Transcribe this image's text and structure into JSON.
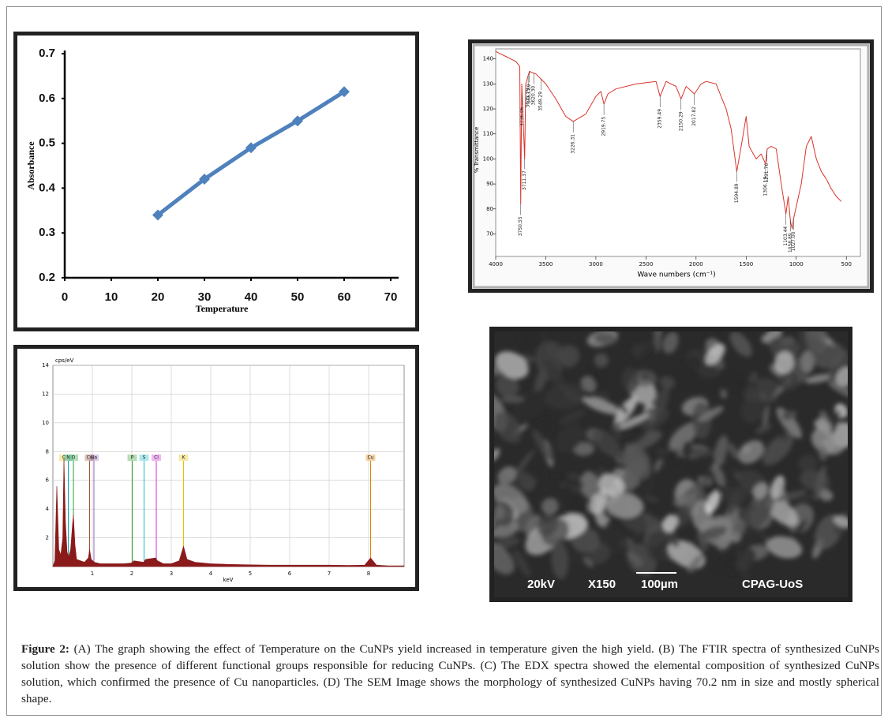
{
  "chart_data": [
    {
      "type": "line",
      "xlabel": "Temperature",
      "ylabel": "Absorbance",
      "x": [
        20,
        30,
        40,
        50,
        60
      ],
      "values": [
        0.34,
        0.42,
        0.49,
        0.55,
        0.615
      ],
      "color": "#4f81bd",
      "markers": "diamond",
      "grid": false,
      "xlim": [
        0,
        70
      ],
      "xticks": [
        0,
        10,
        20,
        30,
        40,
        50,
        60,
        70
      ],
      "ylim": [
        0.2,
        0.7
      ],
      "yticks": [
        0.2,
        0.3,
        0.4,
        0.5,
        0.6,
        0.7
      ]
    },
    {
      "type": "line",
      "xlabel": "Wave numbers (cm⁻¹)",
      "ylabel": "% Transmittance",
      "x": [
        4000,
        3900,
        3800,
        3760,
        3750.55,
        3740,
        3711,
        3700,
        3663.89,
        3600,
        3549,
        3500,
        3400,
        3300,
        3226,
        3100,
        3000,
        2950,
        2919.75,
        2880,
        2800,
        2600,
        2400,
        2359,
        2300,
        2200,
        2150,
        2100,
        2017,
        1950,
        1900,
        1800,
        1700,
        1650,
        1594,
        1550,
        1500,
        1470,
        1400,
        1350,
        1306,
        1290,
        1250,
        1200,
        1150,
        1103,
        1080,
        1058,
        1040,
        1027,
        950,
        900,
        850,
        800,
        750,
        700,
        650,
        600,
        550
      ],
      "values": [
        143,
        141,
        139,
        137,
        82,
        130,
        100,
        130,
        135,
        134,
        132,
        130,
        124,
        117,
        115,
        118,
        125,
        127,
        122,
        126,
        128,
        130,
        131,
        125,
        131,
        129,
        124,
        129,
        126,
        130,
        131,
        130,
        120,
        112,
        95,
        105,
        117,
        105,
        100,
        102,
        98,
        104,
        105,
        104,
        90,
        78,
        85,
        75,
        72,
        76,
        90,
        105,
        109,
        100,
        95,
        92,
        88,
        85,
        83
      ],
      "color": "#d9342b",
      "grid": false,
      "xlim": [
        4000,
        360
      ],
      "xticks": [
        4000,
        3500,
        3000,
        2500,
        2000,
        1500,
        1000,
        500
      ],
      "ylim": [
        61,
        144
      ],
      "yticks": [
        70,
        80,
        90,
        100,
        110,
        120,
        130,
        140
      ],
      "peaks": [
        {
          "value": 3750.55,
          "label": "3750.55"
        },
        {
          "value": 3736.06,
          "label": "3736.06"
        },
        {
          "value": 3711.37,
          "label": "3711.37"
        },
        {
          "value": 3675.79,
          "label": "3675.79"
        },
        {
          "value": 3663.89,
          "label": "3663.89"
        },
        {
          "value": 3620.3,
          "label": "3620.30"
        },
        {
          "value": 3549.29,
          "label": "3549.29"
        },
        {
          "value": 3226.31,
          "label": "3226.31"
        },
        {
          "value": 2919.75,
          "label": "2919.75"
        },
        {
          "value": 2359.49,
          "label": "2359.49"
        },
        {
          "value": 2150.29,
          "label": "2150.29"
        },
        {
          "value": 2017.82,
          "label": "2017.82"
        },
        {
          "value": 1594.89,
          "label": "1594.89"
        },
        {
          "value": 1306.19,
          "label": "1306.19"
        },
        {
          "value": 1291.76,
          "label": "1291.76"
        },
        {
          "value": 1103.44,
          "label": "1103.44"
        },
        {
          "value": 1058.89,
          "label": "1058.89"
        },
        {
          "value": 1027,
          "label": "1027.00"
        }
      ]
    },
    {
      "type": "area",
      "xlabel": "keV",
      "ylabel": "cps/eV",
      "x": [
        0,
        0.05,
        0.1,
        0.15,
        0.2,
        0.25,
        0.28,
        0.32,
        0.36,
        0.4,
        0.45,
        0.5,
        0.52,
        0.56,
        0.6,
        0.7,
        0.8,
        0.9,
        0.93,
        0.97,
        1.05,
        1.2,
        1.5,
        1.8,
        2.0,
        2.05,
        2.3,
        2.35,
        2.6,
        2.65,
        2.8,
        3.0,
        3.2,
        3.31,
        3.4,
        3.6,
        4.0,
        4.5,
        5,
        5.5,
        6,
        6.5,
        7,
        7.5,
        7.9,
        8.05,
        8.2,
        8.5,
        8.9
      ],
      "values": [
        0,
        0.4,
        5.6,
        1.2,
        0.8,
        2.0,
        7.5,
        3.0,
        1.0,
        0.7,
        1.2,
        3.0,
        3.6,
        1.5,
        0.5,
        0.4,
        0.3,
        0.6,
        1.2,
        0.5,
        0.3,
        0.2,
        0.2,
        0.2,
        0.25,
        0.4,
        0.3,
        0.5,
        0.6,
        0.4,
        0.2,
        0.2,
        0.4,
        1.4,
        0.5,
        0.3,
        0.2,
        0.15,
        0.12,
        0.1,
        0.1,
        0.1,
        0.1,
        0.08,
        0.1,
        0.6,
        0.1,
        0.05,
        0.05
      ],
      "color": "#8b1a1a",
      "grid": true,
      "xlim": [
        0,
        8.9
      ],
      "xticks": [
        1,
        2,
        3,
        4,
        5,
        6,
        7,
        8
      ],
      "ylim": [
        0,
        14
      ],
      "yticks": [
        2,
        4,
        6,
        8,
        10,
        12,
        14
      ],
      "elements": [
        {
          "name": "C",
          "x": 0.28,
          "color": "#e6c200"
        },
        {
          "name": "N",
          "x": 0.39,
          "color": "#00a7a7"
        },
        {
          "name": "O",
          "x": 0.52,
          "color": "#2ca02c"
        },
        {
          "name": "Cu",
          "x": 0.93,
          "color": "#a0522d"
        },
        {
          "name": "Na",
          "x": 1.04,
          "color": "#9467bd"
        },
        {
          "name": "P",
          "x": 2.01,
          "color": "#2ca02c"
        },
        {
          "name": "S",
          "x": 2.31,
          "color": "#17becf"
        },
        {
          "name": "Cl",
          "x": 2.62,
          "color": "#d62fd6"
        },
        {
          "name": "K",
          "x": 3.31,
          "color": "#e6c200"
        },
        {
          "name": "Cu",
          "x": 8.05,
          "color": "#e08000"
        }
      ]
    }
  ],
  "image": {
    "texts": [
      "20kV",
      "X150",
      "100µm",
      "CPAG-UoS"
    ]
  },
  "caption": {
    "label": "Figure 2:",
    "text": "(A) The graph showing the effect of Temperature on the CuNPs yield increased in temperature given the high yield. (B) The FTIR spectra of synthesized CuNPs solution show the presence of different functional groups responsible for reducing CuNPs. (C) The EDX spectra showed the elemental composition of synthesized CuNPs solution, which confirmed the presence of Cu nanoparticles. (D) The SEM Image shows the morphology of synthesized CuNPs having 70.2 nm in size and mostly spherical shape."
  }
}
